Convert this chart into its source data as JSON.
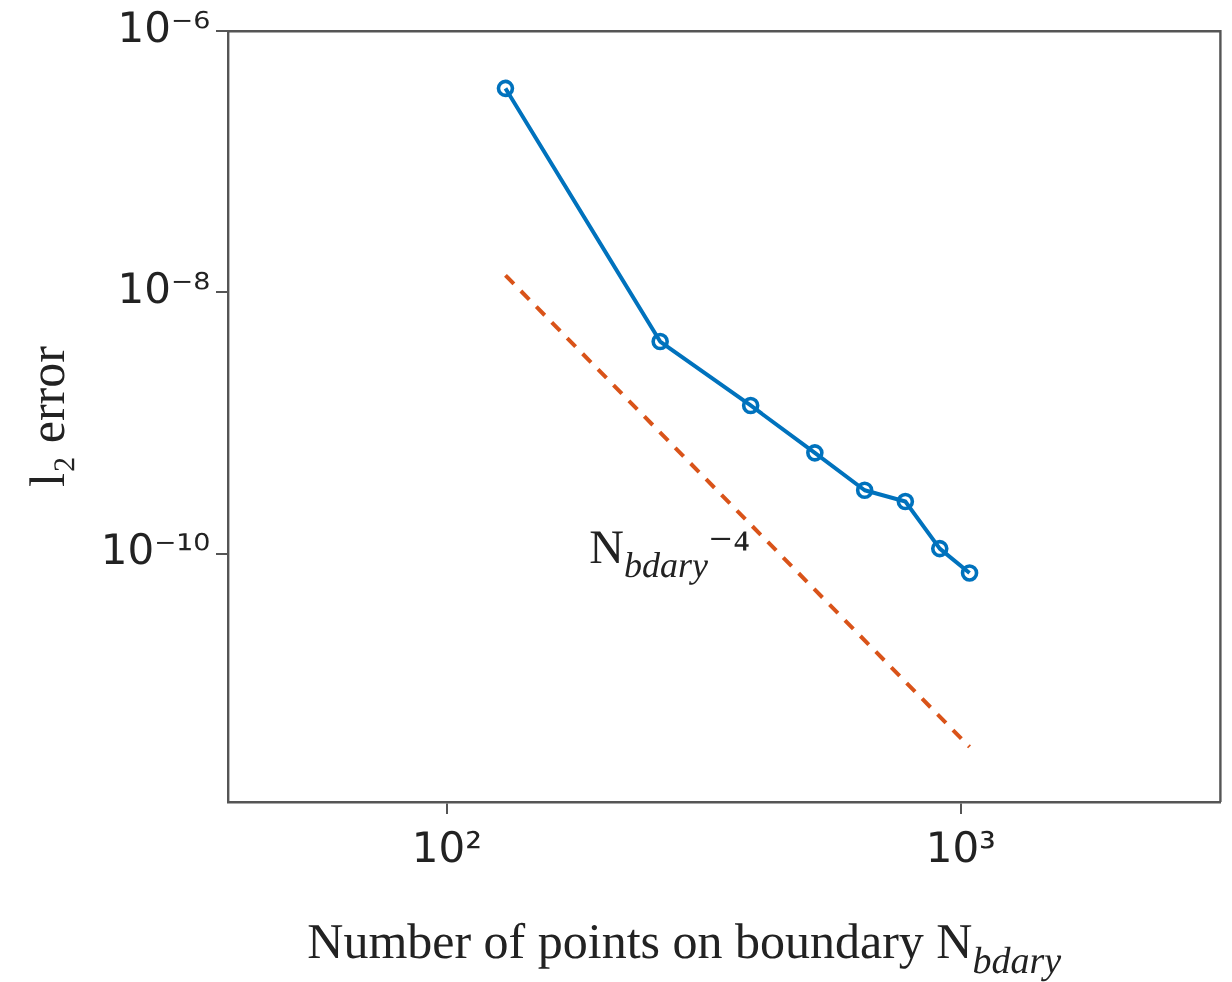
{
  "chart_data": {
    "type": "line",
    "xlabel": "Number of points on boundary N$_{bdary}$",
    "ylabel": "l₂ error",
    "log": "xy",
    "grid": false,
    "legend": false,
    "xlim": [
      37.5,
      3200
    ],
    "ylim": [
      1.25e-12,
      1e-06
    ],
    "xticks": [
      {
        "value": 100,
        "label": "10²"
      },
      {
        "value": 1000,
        "label": "10³"
      }
    ],
    "yticks": [
      {
        "value": 1e-10,
        "label": "10⁻¹⁰"
      },
      {
        "value": 1e-08,
        "label": "10⁻⁸"
      },
      {
        "value": 1e-06,
        "label": "10⁻⁶"
      }
    ],
    "series": [
      {
        "color": "#0072bd",
        "marker": "circle",
        "line_style": "solid",
        "x": [
          130,
          260,
          390,
          520,
          650,
          780,
          910,
          1040
        ],
        "values": [
          3.65e-07,
          4.2e-09,
          1.36e-09,
          5.9e-10,
          3.05e-10,
          2.5e-10,
          1.09e-10,
          7.1e-11
        ]
      },
      {
        "color": "#d95319",
        "marker": "none",
        "line_style": "dashed",
        "x": [
          130,
          1040
        ],
        "values": [
          1.35e-08,
          3.3e-12
        ]
      }
    ],
    "annotations": [
      "N$_{bdary}$⁻⁴"
    ]
  }
}
